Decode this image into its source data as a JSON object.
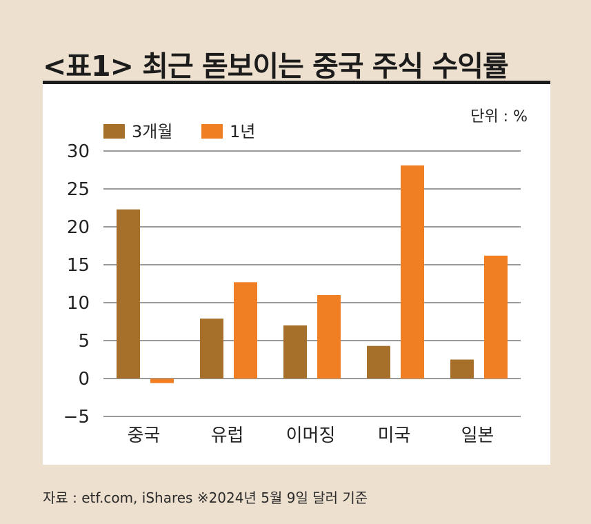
{
  "title": "<표1> 최근 돋보이는 중국 주식 수익률",
  "source": "자료 : etf.com, iShares ※2024년 5월 9일 달러 기준",
  "colors": {
    "background": "#ede0cf",
    "panel": "#ffffff",
    "series_3m": "#a6702b",
    "series_1y": "#f07f24"
  },
  "chart_data": {
    "type": "bar",
    "unit_label": "단위 : %",
    "categories": [
      "중국",
      "유럽",
      "이머징",
      "미국",
      "일본"
    ],
    "series": [
      {
        "name": "3개월",
        "color": "#a6702b",
        "values": [
          22.3,
          7.9,
          7.0,
          4.3,
          2.5
        ]
      },
      {
        "name": "1년",
        "color": "#f07f24",
        "values": [
          -0.6,
          12.7,
          11.0,
          28.1,
          16.2
        ]
      }
    ],
    "ylim": [
      -5,
      30
    ],
    "yticks": [
      "30",
      "25",
      "20",
      "15",
      "10",
      "5",
      "0",
      "−5"
    ],
    "ytick_values": [
      30,
      25,
      20,
      15,
      10,
      5,
      0,
      -5
    ],
    "grid": true,
    "legend": "top-left"
  }
}
